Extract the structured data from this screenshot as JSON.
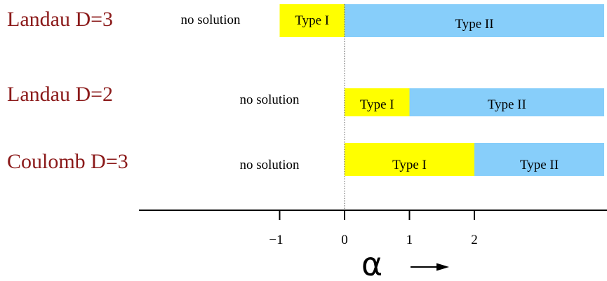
{
  "colors": {
    "type_i": "#ffff00",
    "type_ii": "#87cefa",
    "row_title": "#8b1a1a"
  },
  "rows": [
    {
      "title": "Landau D=3",
      "no_solution_label": "no solution",
      "segments": [
        {
          "label": "Type I",
          "from": -1,
          "to": 0,
          "kind": "type_i"
        },
        {
          "label": "Type II",
          "from": 0,
          "to": 4,
          "kind": "type_ii"
        }
      ]
    },
    {
      "title": "Landau D=2",
      "no_solution_label": "no solution",
      "segments": [
        {
          "label": "Type I",
          "from": 0,
          "to": 1,
          "kind": "type_i"
        },
        {
          "label": "Type II",
          "from": 1,
          "to": 4,
          "kind": "type_ii"
        }
      ]
    },
    {
      "title": "Coulomb D=3",
      "no_solution_label": "no solution",
      "segments": [
        {
          "label": "Type I",
          "from": 0,
          "to": 2,
          "kind": "type_i"
        },
        {
          "label": "Type II",
          "from": 2,
          "to": 4,
          "kind": "type_ii"
        }
      ]
    }
  ],
  "axis": {
    "ticks": [
      {
        "value": -1,
        "label": "−1"
      },
      {
        "value": 0,
        "label": "0"
      },
      {
        "value": 1,
        "label": "1"
      },
      {
        "value": 2,
        "label": "2"
      }
    ],
    "symbol": "α",
    "arrow": "right"
  }
}
